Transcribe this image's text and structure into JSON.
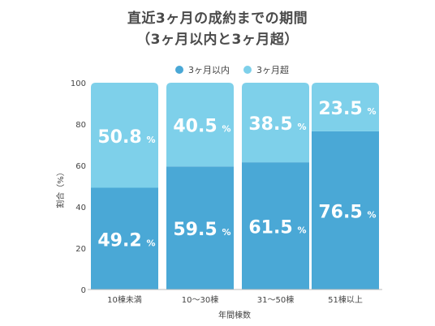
{
  "title": {
    "line1": "直近3ヶ月の成約までの期間",
    "line2": "（3ヶ月以内と3ヶ月超）"
  },
  "legend": {
    "within": "3ヶ月以内",
    "over": "3ヶ月超"
  },
  "colors": {
    "within": "#4aa8d6",
    "over": "#7ed0ea"
  },
  "chart_data": {
    "type": "bar",
    "stacked": true,
    "categories": [
      "10棟未満",
      "10〜30棟",
      "31〜50棟",
      "51棟以上"
    ],
    "series": [
      {
        "name": "3ヶ月以内",
        "values": [
          49.2,
          59.5,
          61.5,
          76.5
        ]
      },
      {
        "name": "3ヶ月超",
        "values": [
          50.8,
          40.5,
          38.5,
          23.5
        ]
      }
    ],
    "unit": "%",
    "xlabel": "年間棟数",
    "ylabel": "割合（%）",
    "ylim": [
      0,
      100
    ],
    "yticks": [
      0,
      20,
      40,
      60,
      80,
      100
    ],
    "grid": false,
    "legend_position": "top"
  }
}
